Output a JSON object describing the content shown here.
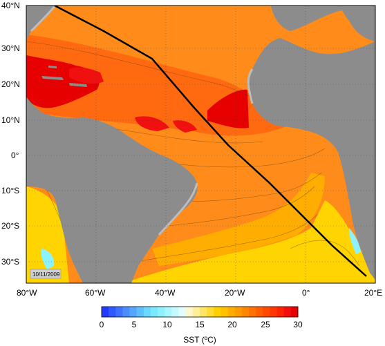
{
  "map": {
    "date_stamp": "10/11/2009",
    "colors": {
      "land": "#8c8c8c",
      "shelf": "#bdbdbd",
      "track": "#000000",
      "border": "#000000"
    },
    "lat_labels": [
      "40°N",
      "30°N",
      "20°N",
      "10°N",
      "0°",
      "10°S",
      "20°S",
      "30°S"
    ],
    "lon_labels": [
      "80°W",
      "60°W",
      "40°W",
      "20°W",
      "0°",
      "20°E"
    ]
  },
  "colorbar": {
    "title": "SST (ºC)",
    "tick_labels": [
      "0",
      "5",
      "10",
      "15",
      "20",
      "25",
      "30"
    ],
    "colors": [
      "#1f3cff",
      "#2f58ff",
      "#3d72ff",
      "#4a8dff",
      "#55a6ff",
      "#5fc0ff",
      "#6ad8ff",
      "#7ae8ff",
      "#8df2ff",
      "#a8f6ff",
      "#c4faff",
      "#e3fdff",
      "#fff6cc",
      "#ffef99",
      "#ffe566",
      "#ffdb33",
      "#ffd000",
      "#ffc000",
      "#ffad00",
      "#ff9a00",
      "#ff8600",
      "#ff7200",
      "#ff5e00",
      "#ff4a00",
      "#ff3600",
      "#ff2200",
      "#f50d0d",
      "#e60000"
    ]
  }
}
